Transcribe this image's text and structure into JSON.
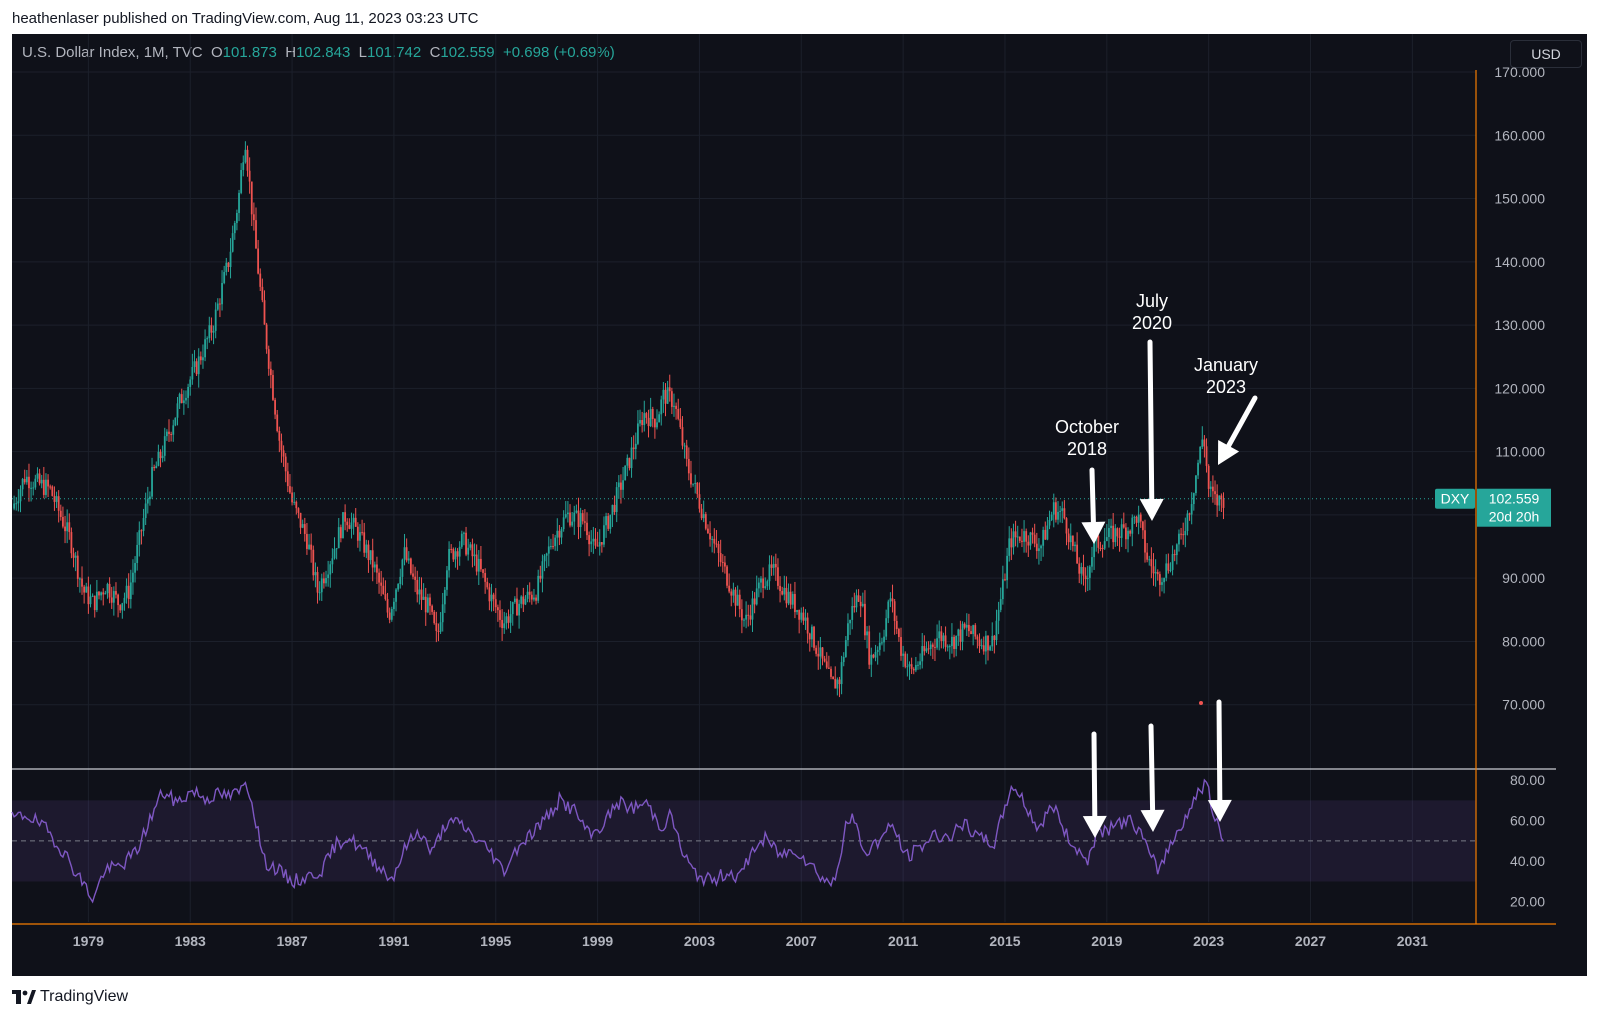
{
  "published_line": "heathenlaser published on TradingView.com, Aug 11, 2023 03:23 UTC",
  "header": {
    "symbol": "U.S. Dollar Index, 1M, TVC",
    "o_label": "O",
    "o_value": "101.873",
    "h_label": "H",
    "h_value": "102.843",
    "l_label": "L",
    "l_value": "101.742",
    "c_label": "C",
    "c_value": "102.559",
    "change": "+0.698 (+0.69%)"
  },
  "currency_button": "USD",
  "price_tag": {
    "ticker": "DXY",
    "price": "102.559",
    "countdown": "20d 20h"
  },
  "brand": "TradingView",
  "colors": {
    "up": "#26a69a",
    "down": "#ef5350",
    "rsi": "#7e57c2",
    "axis_accent": "#f57c00",
    "background": "#0f1119"
  },
  "chart_data": [
    {
      "type": "candlestick",
      "interval": "1M",
      "x_ticks": [
        "1979",
        "1983",
        "1987",
        "1991",
        "1995",
        "1999",
        "2003",
        "2007",
        "2011",
        "2015",
        "2019",
        "2023",
        "2027",
        "2031"
      ],
      "y_ticks": [
        "70.000",
        "80.000",
        "90.000",
        "100.000",
        "110.000",
        "120.000",
        "130.000",
        "140.000",
        "150.000",
        "160.000",
        "170.000"
      ],
      "ylim": [
        60,
        170
      ],
      "xlim": [
        1976.0,
        2033.5
      ],
      "last_price": 102.559,
      "close_trajectory": [
        [
          1976.0,
          101
        ],
        [
          1976.5,
          106
        ],
        [
          1977.5,
          104
        ],
        [
          1978.3,
          96
        ],
        [
          1978.8,
          88
        ],
        [
          1979.2,
          86
        ],
        [
          1979.7,
          89
        ],
        [
          1980.2,
          86
        ],
        [
          1980.6,
          88
        ],
        [
          1981.0,
          96
        ],
        [
          1981.5,
          106
        ],
        [
          1981.9,
          110
        ],
        [
          1982.6,
          118
        ],
        [
          1983.3,
          124
        ],
        [
          1983.9,
          130
        ],
        [
          1984.5,
          140
        ],
        [
          1984.9,
          150
        ],
        [
          1985.15,
          160
        ],
        [
          1985.5,
          145
        ],
        [
          1985.9,
          130
        ],
        [
          1986.5,
          112
        ],
        [
          1987.0,
          102
        ],
        [
          1987.6,
          96
        ],
        [
          1988.0,
          88
        ],
        [
          1988.5,
          93
        ],
        [
          1989.1,
          100
        ],
        [
          1989.6,
          97
        ],
        [
          1990.2,
          92
        ],
        [
          1990.8,
          84
        ],
        [
          1991.4,
          94
        ],
        [
          1991.9,
          88
        ],
        [
          1992.4,
          85
        ],
        [
          1992.7,
          80
        ],
        [
          1993.1,
          93
        ],
        [
          1993.7,
          96
        ],
        [
          1994.3,
          92
        ],
        [
          1994.8,
          87
        ],
        [
          1995.3,
          83
        ],
        [
          1995.9,
          86
        ],
        [
          1996.6,
          88
        ],
        [
          1997.2,
          96
        ],
        [
          1997.8,
          100
        ],
        [
          1998.5,
          99
        ],
        [
          1998.9,
          94
        ],
        [
          1999.5,
          100
        ],
        [
          2000.2,
          108
        ],
        [
          2000.8,
          116
        ],
        [
          2001.3,
          115
        ],
        [
          2001.6,
          119
        ],
        [
          2002.0,
          118
        ],
        [
          2002.5,
          108
        ],
        [
          2003.0,
          102
        ],
        [
          2003.6,
          95
        ],
        [
          2004.2,
          89
        ],
        [
          2004.8,
          83
        ],
        [
          2005.5,
          90
        ],
        [
          2005.9,
          91
        ],
        [
          2006.5,
          87
        ],
        [
          2007.1,
          84
        ],
        [
          2007.7,
          78
        ],
        [
          2008.2,
          73
        ],
        [
          2008.5,
          74
        ],
        [
          2008.9,
          84
        ],
        [
          2009.3,
          88
        ],
        [
          2009.7,
          77
        ],
        [
          2010.2,
          81
        ],
        [
          2010.5,
          87
        ],
        [
          2010.9,
          79
        ],
        [
          2011.3,
          75
        ],
        [
          2011.8,
          78
        ],
        [
          2012.4,
          81
        ],
        [
          2012.9,
          80
        ],
        [
          2013.5,
          82
        ],
        [
          2014.0,
          80
        ],
        [
          2014.5,
          80
        ],
        [
          2014.9,
          88
        ],
        [
          2015.2,
          96
        ],
        [
          2015.8,
          97
        ],
        [
          2016.4,
          95
        ],
        [
          2016.9,
          101
        ],
        [
          2017.3,
          100
        ],
        [
          2017.8,
          93
        ],
        [
          2018.1,
          89
        ],
        [
          2018.5,
          95
        ],
        [
          2018.8,
          96
        ],
        [
          2019.3,
          97
        ],
        [
          2019.9,
          98
        ],
        [
          2020.2,
          100
        ],
        [
          2020.6,
          93
        ],
        [
          2021.0,
          90
        ],
        [
          2021.4,
          92
        ],
        [
          2021.9,
          96
        ],
        [
          2022.3,
          102
        ],
        [
          2022.8,
          113
        ],
        [
          2023.0,
          104
        ],
        [
          2023.3,
          102
        ],
        [
          2023.6,
          102.559
        ]
      ]
    },
    {
      "type": "line",
      "title": "",
      "ylim": [
        10,
        85
      ],
      "y_ticks": [
        "20.00",
        "40.00",
        "60.00",
        "80.00"
      ],
      "band": [
        30,
        70
      ],
      "midline": 50,
      "rsi_trajectory": [
        [
          1976.0,
          61
        ],
        [
          1976.6,
          63
        ],
        [
          1977.4,
          55
        ],
        [
          1978.0,
          45
        ],
        [
          1978.5,
          35
        ],
        [
          1978.9,
          27
        ],
        [
          1979.2,
          21
        ],
        [
          1979.6,
          35
        ],
        [
          1980.3,
          38
        ],
        [
          1980.9,
          45
        ],
        [
          1981.4,
          60
        ],
        [
          1981.9,
          74
        ],
        [
          1982.5,
          69
        ],
        [
          1983.1,
          75
        ],
        [
          1983.6,
          71
        ],
        [
          1984.1,
          73
        ],
        [
          1984.6,
          72
        ],
        [
          1985.0,
          75
        ],
        [
          1985.2,
          80
        ],
        [
          1985.5,
          65
        ],
        [
          1985.9,
          40
        ],
        [
          1986.4,
          36
        ],
        [
          1987.0,
          30
        ],
        [
          1987.6,
          32
        ],
        [
          1988.2,
          36
        ],
        [
          1988.7,
          48
        ],
        [
          1989.2,
          52
        ],
        [
          1989.8,
          45
        ],
        [
          1990.4,
          38
        ],
        [
          1990.9,
          31
        ],
        [
          1991.5,
          48
        ],
        [
          1992.0,
          55
        ],
        [
          1992.5,
          44
        ],
        [
          1993.0,
          58
        ],
        [
          1993.6,
          59
        ],
        [
          1994.2,
          51
        ],
        [
          1994.8,
          45
        ],
        [
          1995.3,
          35
        ],
        [
          1995.9,
          48
        ],
        [
          1996.5,
          55
        ],
        [
          1997.1,
          63
        ],
        [
          1997.5,
          70
        ],
        [
          1998.1,
          65
        ],
        [
          1998.7,
          52
        ],
        [
          1999.2,
          58
        ],
        [
          1999.8,
          69
        ],
        [
          2000.4,
          66
        ],
        [
          2000.9,
          69
        ],
        [
          2001.5,
          57
        ],
        [
          2001.9,
          63
        ],
        [
          2002.3,
          45
        ],
        [
          2002.8,
          34
        ],
        [
          2003.5,
          30
        ],
        [
          2004.1,
          35
        ],
        [
          2004.6,
          32
        ],
        [
          2005.1,
          46
        ],
        [
          2005.6,
          51
        ],
        [
          2006.2,
          43
        ],
        [
          2006.8,
          46
        ],
        [
          2007.4,
          38
        ],
        [
          2007.9,
          31
        ],
        [
          2008.3,
          29
        ],
        [
          2008.7,
          55
        ],
        [
          2009.0,
          62
        ],
        [
          2009.5,
          44
        ],
        [
          2010.1,
          51
        ],
        [
          2010.6,
          58
        ],
        [
          2011.1,
          42
        ],
        [
          2011.6,
          46
        ],
        [
          2012.2,
          53
        ],
        [
          2012.8,
          52
        ],
        [
          2013.4,
          58
        ],
        [
          2014.0,
          51
        ],
        [
          2014.6,
          49
        ],
        [
          2015.0,
          67
        ],
        [
          2015.3,
          78
        ],
        [
          2015.8,
          68
        ],
        [
          2016.3,
          56
        ],
        [
          2016.9,
          68
        ],
        [
          2017.4,
          53
        ],
        [
          2017.9,
          45
        ],
        [
          2018.2,
          40
        ],
        [
          2018.7,
          55
        ],
        [
          2019.2,
          56
        ],
        [
          2019.8,
          61
        ],
        [
          2020.3,
          55
        ],
        [
          2020.6,
          45
        ],
        [
          2021.0,
          36
        ],
        [
          2021.5,
          48
        ],
        [
          2022.0,
          60
        ],
        [
          2022.6,
          74
        ],
        [
          2022.9,
          80
        ],
        [
          2023.2,
          61
        ],
        [
          2023.6,
          51
        ]
      ]
    }
  ],
  "annotations": [
    {
      "line1": "October",
      "line2": "2018"
    },
    {
      "line1": "July",
      "line2": "2020"
    },
    {
      "line1": "January",
      "line2": "2023"
    }
  ]
}
